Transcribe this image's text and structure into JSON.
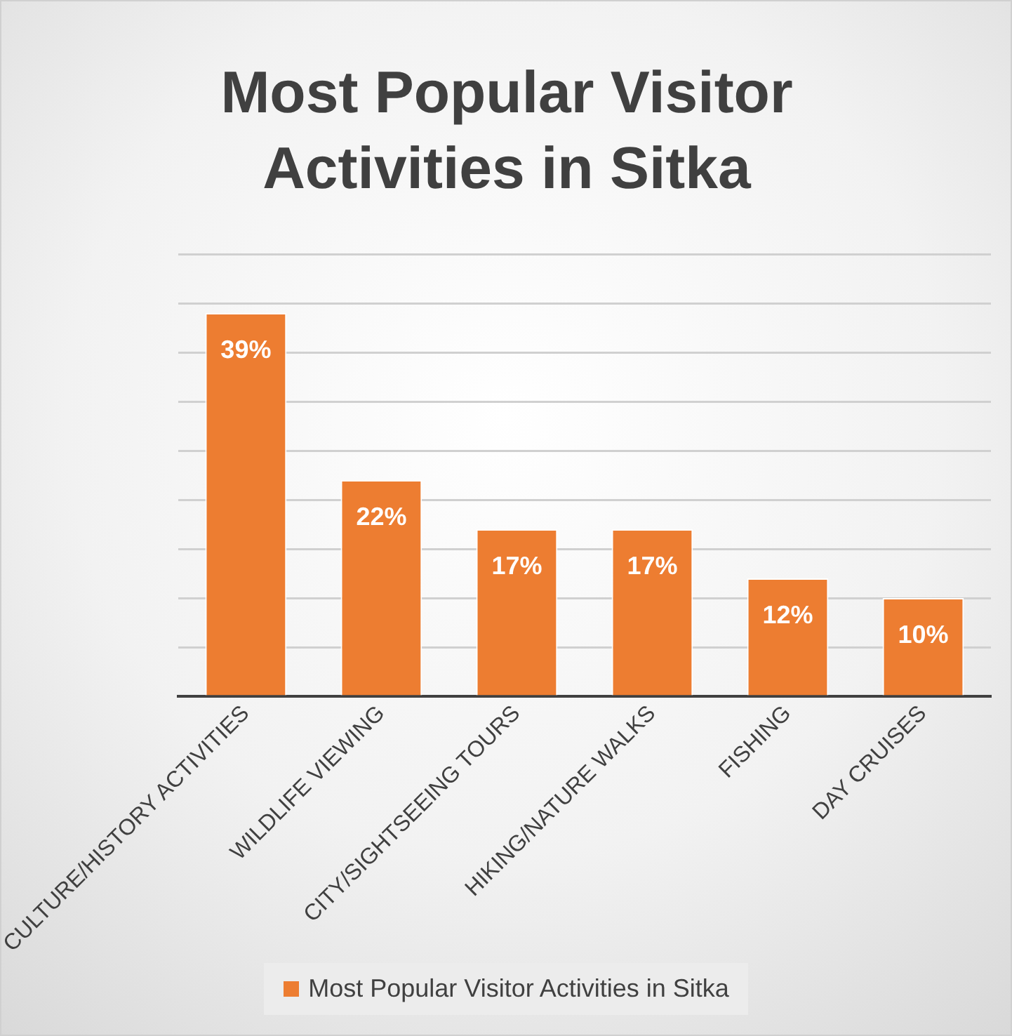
{
  "chart_data": {
    "type": "bar",
    "title": "Most Popular Visitor Activities in Sitka",
    "categories": [
      "CULTURE/HISTORY ACTIVITIES",
      "WILDLIFE VIEWING",
      "CITY/SIGHTSEEING TOURS",
      "HIKING/NATURE WALKS",
      "FISHING",
      "DAY CRUISES"
    ],
    "series": [
      {
        "name": "Most Popular Visitor Activities in Sitka",
        "color": "#ed7d31",
        "values": [
          39,
          22,
          17,
          17,
          12,
          10
        ],
        "value_labels": [
          "39%",
          "22%",
          "17%",
          "17%",
          "12%",
          "10%"
        ]
      }
    ],
    "ylim": [
      0,
      45
    ],
    "yticks": [
      {
        "value": 0,
        "label": null
      },
      {
        "value": 5,
        "label": null
      },
      {
        "value": 10,
        "label": null
      },
      {
        "value": 15,
        "label": null
      },
      {
        "value": 20,
        "label": null
      },
      {
        "value": 25,
        "label": null
      },
      {
        "value": 30,
        "label": null
      },
      {
        "value": 35,
        "label": null
      },
      {
        "value": 40,
        "label": null
      },
      {
        "value": 45,
        "label": null
      }
    ],
    "tick_labels": "x",
    "grid": "y",
    "legend": "bottom"
  }
}
